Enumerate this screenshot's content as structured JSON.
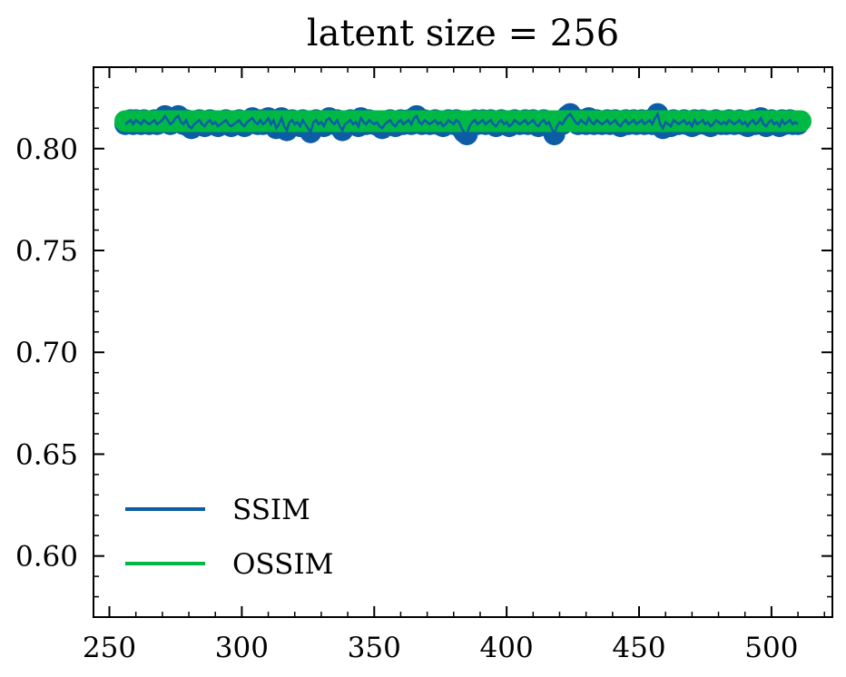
{
  "chart_data": {
    "type": "line",
    "title": "latent size = 256",
    "xlabel": "",
    "ylabel": "",
    "xlim": [
      244,
      523
    ],
    "ylim": [
      0.57,
      0.84
    ],
    "x_ticks": [
      250,
      300,
      350,
      400,
      450,
      500
    ],
    "x_tick_labels": [
      "250",
      "300",
      "350",
      "400",
      "450",
      "500"
    ],
    "y_ticks": [
      0.6,
      0.65,
      0.7,
      0.75,
      0.8
    ],
    "y_tick_labels": [
      "0.60",
      "0.65",
      "0.70",
      "0.75",
      "0.80"
    ],
    "x_minor_step": 10,
    "y_minor_step": 0.01,
    "grid": false,
    "legend_location": "lower-left",
    "series": [
      {
        "name": "SSIM",
        "color": "#0C5DA5",
        "markers": true,
        "x_start": 256,
        "x_step": 1,
        "values": [
          0.812,
          0.813,
          0.814,
          0.812,
          0.814,
          0.813,
          0.812,
          0.814,
          0.813,
          0.812,
          0.813,
          0.814,
          0.812,
          0.813,
          0.814,
          0.816,
          0.814,
          0.812,
          0.813,
          0.815,
          0.816,
          0.813,
          0.812,
          0.814,
          0.811,
          0.81,
          0.812,
          0.813,
          0.814,
          0.812,
          0.811,
          0.813,
          0.814,
          0.812,
          0.813,
          0.811,
          0.812,
          0.813,
          0.814,
          0.812,
          0.811,
          0.812,
          0.813,
          0.814,
          0.812,
          0.811,
          0.813,
          0.814,
          0.815,
          0.813,
          0.812,
          0.814,
          0.812,
          0.813,
          0.815,
          0.812,
          0.814,
          0.81,
          0.812,
          0.815,
          0.811,
          0.809,
          0.813,
          0.814,
          0.812,
          0.813,
          0.811,
          0.814,
          0.812,
          0.81,
          0.808,
          0.813,
          0.814,
          0.812,
          0.813,
          0.811,
          0.814,
          0.815,
          0.813,
          0.812,
          0.814,
          0.811,
          0.809,
          0.812,
          0.813,
          0.814,
          0.812,
          0.813,
          0.811,
          0.815,
          0.813,
          0.812,
          0.814,
          0.813,
          0.812,
          0.813,
          0.811,
          0.81,
          0.812,
          0.813,
          0.814,
          0.812,
          0.811,
          0.813,
          0.814,
          0.812,
          0.813,
          0.814,
          0.812,
          0.815,
          0.816,
          0.813,
          0.812,
          0.814,
          0.813,
          0.812,
          0.813,
          0.814,
          0.812,
          0.813,
          0.811,
          0.812,
          0.814,
          0.813,
          0.812,
          0.814,
          0.813,
          0.81,
          0.808,
          0.807,
          0.811,
          0.813,
          0.814,
          0.812,
          0.813,
          0.814,
          0.812,
          0.813,
          0.814,
          0.812,
          0.811,
          0.813,
          0.814,
          0.812,
          0.813,
          0.811,
          0.812,
          0.814,
          0.813,
          0.812,
          0.813,
          0.814,
          0.812,
          0.813,
          0.814,
          0.812,
          0.811,
          0.813,
          0.814,
          0.812,
          0.813,
          0.81,
          0.807,
          0.811,
          0.813,
          0.812,
          0.814,
          0.816,
          0.817,
          0.815,
          0.813,
          0.812,
          0.814,
          0.813,
          0.812,
          0.815,
          0.813,
          0.812,
          0.814,
          0.813,
          0.812,
          0.813,
          0.814,
          0.812,
          0.813,
          0.814,
          0.812,
          0.811,
          0.813,
          0.814,
          0.812,
          0.813,
          0.814,
          0.812,
          0.813,
          0.814,
          0.812,
          0.813,
          0.814,
          0.812,
          0.815,
          0.817,
          0.812,
          0.81,
          0.813,
          0.812,
          0.811,
          0.814,
          0.813,
          0.812,
          0.813,
          0.814,
          0.812,
          0.813,
          0.811,
          0.814,
          0.812,
          0.813,
          0.814,
          0.812,
          0.813,
          0.811,
          0.812,
          0.814,
          0.813,
          0.812,
          0.813,
          0.812,
          0.814,
          0.813,
          0.812,
          0.813,
          0.814,
          0.812,
          0.813,
          0.811,
          0.813,
          0.814,
          0.812,
          0.813,
          0.815,
          0.812,
          0.811,
          0.813,
          0.814,
          0.812,
          0.813,
          0.811,
          0.814,
          0.812,
          0.813,
          0.814,
          0.812,
          0.813,
          0.812
        ]
      },
      {
        "name": "OSSIM",
        "color": "#00B945",
        "markers": true,
        "x_start": 256,
        "x_step": 1,
        "constant_value": 0.8135,
        "count": 256
      }
    ]
  }
}
